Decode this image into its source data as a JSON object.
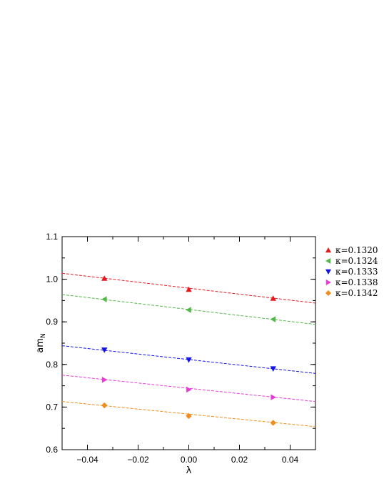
{
  "chart_data": {
    "type": "scatter",
    "title": "",
    "xlabel": "λ",
    "ylabel_main": "am",
    "ylabel_sub": "N",
    "xlim": [
      -0.05,
      0.05
    ],
    "ylim": [
      0.6,
      1.1
    ],
    "xticks": [
      -0.04,
      -0.02,
      0.0,
      0.02,
      0.04
    ],
    "xtick_labels": [
      "−0.04",
      "−0.02",
      "0.00",
      "0.02",
      "0.04"
    ],
    "yticks": [
      0.6,
      0.7,
      0.8,
      0.9,
      1.0,
      1.1
    ],
    "ytick_labels": [
      "0.6",
      "0.7",
      "0.8",
      "0.9",
      "1.0",
      "1.1"
    ],
    "grid": false,
    "legend_position": "outside-right",
    "series": [
      {
        "name": "κ=0.1320",
        "marker": "triangle-up",
        "color": "#e41a1c",
        "x": [
          -0.0333,
          0.0,
          0.0333
        ],
        "y": [
          1.002,
          0.976,
          0.955
        ],
        "fit": {
          "x": [
            -0.05,
            0.05
          ],
          "y": [
            1.014,
            0.944
          ]
        }
      },
      {
        "name": "κ=0.1324",
        "marker": "triangle-left",
        "color": "#52b848",
        "x": [
          -0.0333,
          0.0,
          0.0333
        ],
        "y": [
          0.953,
          0.928,
          0.906
        ],
        "fit": {
          "x": [
            -0.05,
            0.05
          ],
          "y": [
            0.964,
            0.894
          ]
        }
      },
      {
        "name": "κ=0.1333",
        "marker": "triangle-down",
        "color": "#1414e6",
        "x": [
          -0.0333,
          0.0,
          0.0333
        ],
        "y": [
          0.834,
          0.811,
          0.79
        ],
        "fit": {
          "x": [
            -0.05,
            0.05
          ],
          "y": [
            0.844,
            0.779
          ]
        }
      },
      {
        "name": "κ=0.1338",
        "marker": "triangle-right",
        "color": "#e83ad6",
        "x": [
          -0.0333,
          0.0,
          0.0333
        ],
        "y": [
          0.764,
          0.741,
          0.723
        ],
        "fit": {
          "x": [
            -0.05,
            0.05
          ],
          "y": [
            0.775,
            0.713
          ]
        }
      },
      {
        "name": "κ=0.1342",
        "marker": "diamond",
        "color": "#f28c1c",
        "x": [
          -0.0333,
          0.0,
          0.0333
        ],
        "y": [
          0.704,
          0.679,
          0.663
        ],
        "fit": {
          "x": [
            -0.05,
            0.05
          ],
          "y": [
            0.713,
            0.654
          ]
        }
      }
    ]
  }
}
